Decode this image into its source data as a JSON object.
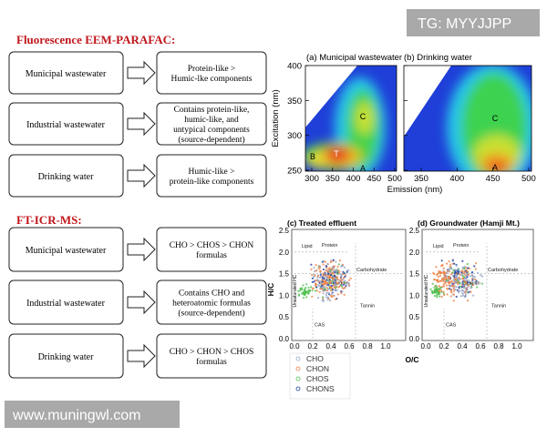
{
  "watermarks": {
    "top": "TG: MYYJJPP",
    "bottom": "www.muningwl.com"
  },
  "sections": [
    {
      "heading": "Fluorescence EEM-PARAFAC:",
      "rows": [
        {
          "source": "Municipal wastewater",
          "result": [
            "Protein-like >",
            "Humic-lke components"
          ]
        },
        {
          "source": "Industrial wastewater",
          "result": [
            "Contains protein-like,",
            "humic-like, and",
            "untypical components",
            "(source-dependent)"
          ]
        },
        {
          "source": "Drinking water",
          "result": [
            "Humic-like >",
            "protein-like components"
          ]
        }
      ]
    },
    {
      "heading": "FT-ICR-MS:",
      "rows": [
        {
          "source": "Municipal wastewater",
          "result": [
            "CHO > CHOS > CHON",
            "formulas"
          ]
        },
        {
          "source": "Industrial wastewater",
          "result": [
            "Contains CHO and",
            "heteroatomic formulas",
            "(source-dependent)"
          ]
        },
        {
          "source": "Drinking water",
          "result": [
            "CHO > CHON > CHOS",
            "formulas"
          ]
        }
      ]
    }
  ],
  "eem": {
    "panels": [
      {
        "title": "(a) Municipal wastewater",
        "xticks": [
          "300",
          "350",
          "400",
          "450",
          "500"
        ],
        "labels": [
          "B",
          "T",
          "A",
          "C"
        ]
      },
      {
        "title": "(b) Drinking water",
        "xticks": [
          "350",
          "400",
          "450",
          "500"
        ],
        "labels": [
          "A",
          "C"
        ]
      }
    ],
    "yticks": [
      "250",
      "300",
      "350",
      "400"
    ],
    "y_label": "Excitation (nm)",
    "x_label": "Emission (nm)"
  },
  "vk": {
    "panels": [
      {
        "title": "(c) Treated effluent"
      },
      {
        "title": "(d) Groundwater (Hamji Mt.)"
      }
    ],
    "xticks": [
      "0.0",
      "0.2",
      "0.4",
      "0.6",
      "0.8",
      "1.0"
    ],
    "yticks": [
      "0.0",
      "0.5",
      "1.0",
      "1.5",
      "2.0",
      "2.5"
    ],
    "x_label": "O/C",
    "y_label": "H/C",
    "regions": [
      "Lipid",
      "Protein",
      "Carbohydrate",
      "Lignin",
      "Tannin",
      "CAS",
      "Unsaturated HC"
    ],
    "legend": [
      "CHO",
      "CHON",
      "CHOS",
      "CHONS"
    ]
  }
}
